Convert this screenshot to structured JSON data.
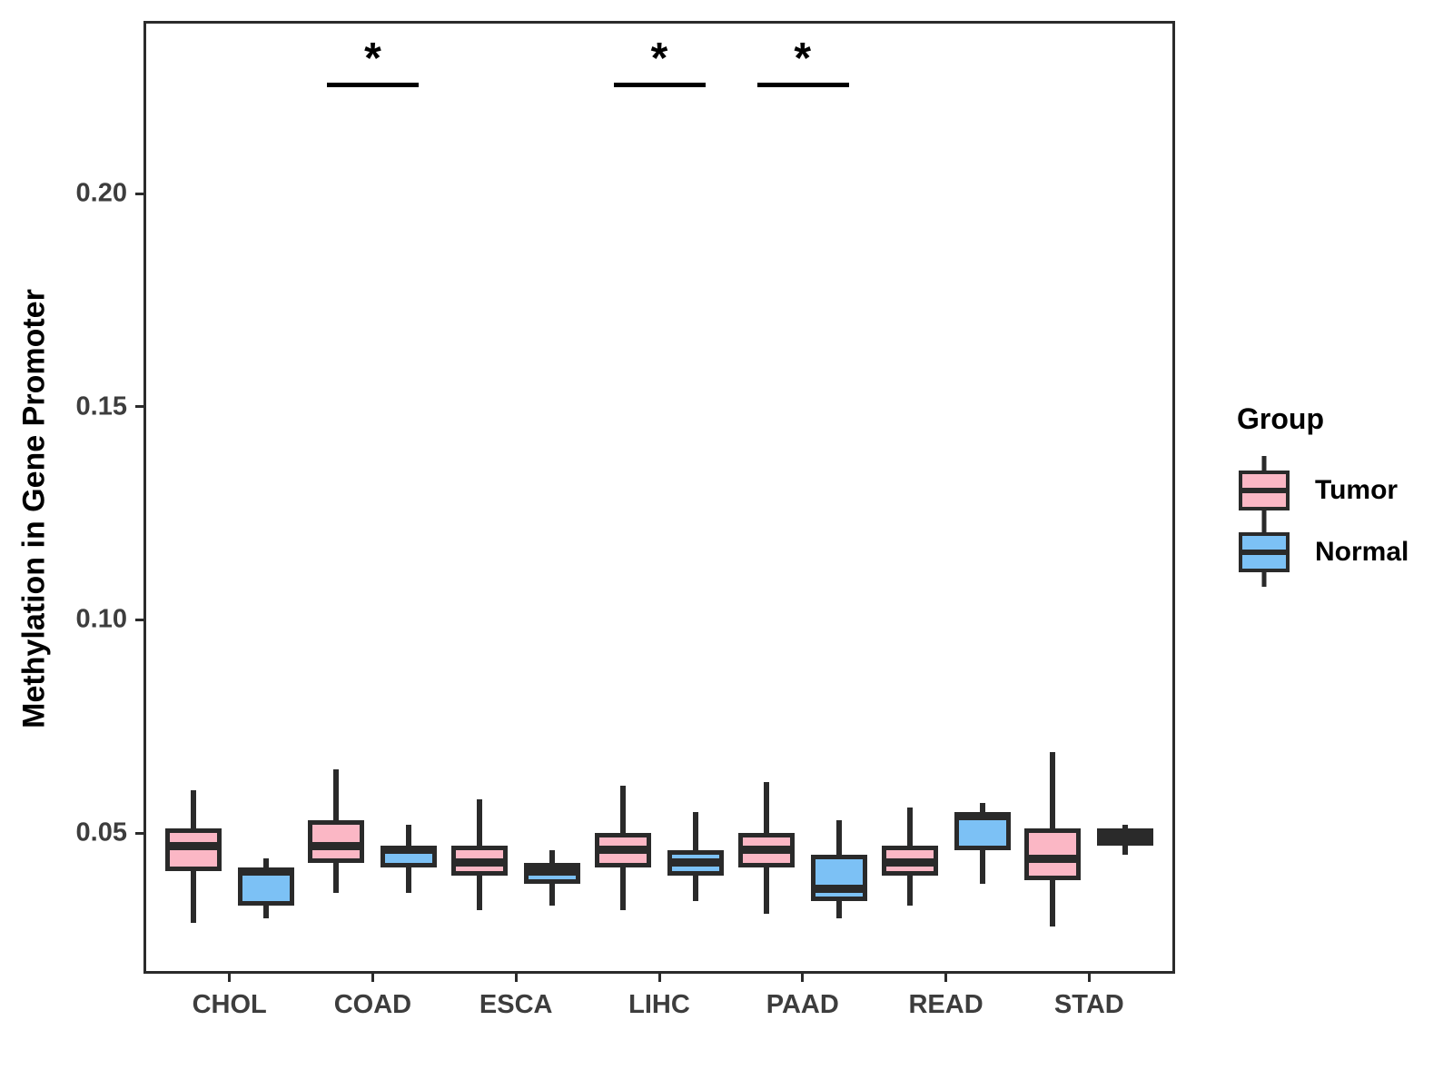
{
  "y_axis": {
    "label": "Methylation in Gene Promoter",
    "tick_labels": [
      "0.05",
      "0.10",
      "0.15",
      "0.20"
    ],
    "tick_values": [
      0.05,
      0.1,
      0.15,
      0.2
    ]
  },
  "legend": {
    "title": "Group",
    "entries": [
      {
        "label": "Tumor",
        "color": "#FBB7C5"
      },
      {
        "label": "Normal",
        "color": "#7CC1F5"
      }
    ]
  },
  "colors": {
    "tumor_fill": "#FBB7C5",
    "normal_fill": "#7CC1F5",
    "stroke": "#2a2a2a",
    "panel_border": "#2b2b2b",
    "tick_text": "#3d3d3d",
    "axis_title_text": "#000000"
  },
  "chart_data": {
    "type": "boxplot",
    "title": "",
    "xlabel": "",
    "ylabel": "Methylation in Gene Promoter",
    "categories": [
      "CHOL",
      "COAD",
      "ESCA",
      "LIHC",
      "PAAD",
      "READ",
      "STAD"
    ],
    "ylim": [
      0.017,
      0.2405
    ],
    "y_ticks": [
      0.05,
      0.1,
      0.15,
      0.2
    ],
    "grid": false,
    "legend_position": "right",
    "series": [
      {
        "name": "Tumor",
        "color": "#FBB7C5",
        "boxes": [
          {
            "category": "CHOL",
            "min": 0.029,
            "q1": 0.041,
            "median": 0.047,
            "q3": 0.051,
            "max": 0.06
          },
          {
            "category": "COAD",
            "min": 0.036,
            "q1": 0.043,
            "median": 0.047,
            "q3": 0.053,
            "max": 0.065
          },
          {
            "category": "ESCA",
            "min": 0.032,
            "q1": 0.04,
            "median": 0.043,
            "q3": 0.047,
            "max": 0.058
          },
          {
            "category": "LIHC",
            "min": 0.032,
            "q1": 0.042,
            "median": 0.046,
            "q3": 0.05,
            "max": 0.061
          },
          {
            "category": "PAAD",
            "min": 0.031,
            "q1": 0.042,
            "median": 0.046,
            "q3": 0.05,
            "max": 0.062
          },
          {
            "category": "READ",
            "min": 0.033,
            "q1": 0.04,
            "median": 0.043,
            "q3": 0.047,
            "max": 0.056
          },
          {
            "category": "STAD",
            "min": 0.028,
            "q1": 0.039,
            "median": 0.044,
            "q3": 0.051,
            "max": 0.069
          }
        ]
      },
      {
        "name": "Normal",
        "color": "#7CC1F5",
        "boxes": [
          {
            "category": "CHOL",
            "min": 0.03,
            "q1": 0.033,
            "median": 0.041,
            "q3": 0.042,
            "max": 0.044
          },
          {
            "category": "COAD",
            "min": 0.036,
            "q1": 0.042,
            "median": 0.046,
            "q3": 0.047,
            "max": 0.052
          },
          {
            "category": "ESCA",
            "min": 0.033,
            "q1": 0.038,
            "median": 0.041,
            "q3": 0.043,
            "max": 0.046
          },
          {
            "category": "LIHC",
            "min": 0.034,
            "q1": 0.04,
            "median": 0.043,
            "q3": 0.046,
            "max": 0.055
          },
          {
            "category": "PAAD",
            "min": 0.03,
            "q1": 0.034,
            "median": 0.037,
            "q3": 0.045,
            "max": 0.053
          },
          {
            "category": "READ",
            "min": 0.038,
            "q1": 0.046,
            "median": 0.054,
            "q3": 0.055,
            "max": 0.057
          },
          {
            "category": "STAD",
            "min": 0.045,
            "q1": 0.047,
            "median": 0.049,
            "q3": 0.051,
            "max": 0.052
          }
        ]
      }
    ],
    "significance": [
      {
        "category": "COAD",
        "label": "*",
        "bar_y": 0.2255
      },
      {
        "category": "LIHC",
        "label": "*",
        "bar_y": 0.2255
      },
      {
        "category": "PAAD",
        "label": "*",
        "bar_y": 0.2255
      }
    ]
  }
}
